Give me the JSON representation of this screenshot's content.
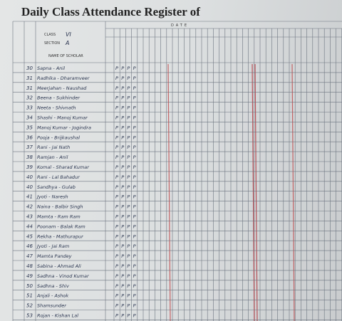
{
  "header": {
    "title": "Daily Class Attendance Register of",
    "class_label": "CLASS",
    "class_value": "VI",
    "section_label": "SECTION",
    "section_value": "A",
    "name_label": "NAME OF SCHOLAR",
    "date_label": "DATE"
  },
  "table": {
    "rows": [
      {
        "roll": "30",
        "name": "Sapna - Anil",
        "marks": [
          "P",
          "P",
          "P",
          "P"
        ]
      },
      {
        "roll": "31",
        "name": "Radhika - Dharamveer",
        "marks": [
          "P",
          "P",
          "P",
          "P"
        ]
      },
      {
        "roll": "31",
        "name": "Meerjahan - Naushad",
        "marks": [
          "P",
          "P",
          "P",
          "P"
        ]
      },
      {
        "roll": "32",
        "name": "Beena - Sukhinder",
        "marks": [
          "P",
          "P",
          "P",
          "P"
        ]
      },
      {
        "roll": "33",
        "name": "Neeta - Shivnath",
        "marks": [
          "P",
          "P",
          "P",
          "P"
        ]
      },
      {
        "roll": "34",
        "name": "Shashi - Manoj Kumar",
        "marks": [
          "P",
          "P",
          "P",
          "P"
        ]
      },
      {
        "roll": "35",
        "name": "Manoj Kumar - Jogindra",
        "marks": [
          "P",
          "P",
          "P",
          "P"
        ]
      },
      {
        "roll": "36",
        "name": "Pooja - Brijkaushal",
        "marks": [
          "P",
          "P",
          "P",
          "P"
        ]
      },
      {
        "roll": "37",
        "name": "Rani - Jai Nath",
        "marks": [
          "P",
          "P",
          "P",
          "P"
        ]
      },
      {
        "roll": "38",
        "name": "Ramjan - Anil",
        "marks": [
          "P",
          "P",
          "P",
          "P"
        ]
      },
      {
        "roll": "39",
        "name": "Komal - Sharad Kumar",
        "marks": [
          "P",
          "P",
          "P",
          "P"
        ]
      },
      {
        "roll": "40",
        "name": "Rani - Lal Bahadur",
        "marks": [
          "P",
          "P",
          "P",
          "P"
        ]
      },
      {
        "roll": "40",
        "name": "Sandhya - Gulab",
        "marks": [
          "P",
          "P",
          "P",
          "P"
        ]
      },
      {
        "roll": "41",
        "name": "Jyoti - Naresh",
        "marks": [
          "P",
          "P",
          "P",
          "P"
        ]
      },
      {
        "roll": "42",
        "name": "Naina - Balbir Singh",
        "marks": [
          "P",
          "P",
          "P",
          "P"
        ]
      },
      {
        "roll": "43",
        "name": "Mamta - Ram Ram",
        "marks": [
          "P",
          "P",
          "P",
          "P"
        ]
      },
      {
        "roll": "44",
        "name": "Poonam - Balak Ram",
        "marks": [
          "P",
          "P",
          "P",
          "P"
        ]
      },
      {
        "roll": "45",
        "name": "Rekha - Mathurapur",
        "marks": [
          "P",
          "P",
          "P",
          "P"
        ]
      },
      {
        "roll": "46",
        "name": "Jyoti - Jai Ram",
        "marks": [
          "P",
          "P",
          "P",
          "P"
        ]
      },
      {
        "roll": "47",
        "name": "Mamta Pandey",
        "marks": [
          "P",
          "P",
          "P",
          "P"
        ]
      },
      {
        "roll": "48",
        "name": "Sabina - Ahmad Ali",
        "marks": [
          "P",
          "P",
          "P",
          "P"
        ]
      },
      {
        "roll": "49",
        "name": "Sadhna - Vinod Kumar",
        "marks": [
          "P",
          "P",
          "P",
          "P"
        ]
      },
      {
        "roll": "50",
        "name": "Sadhna - Shiv",
        "marks": [
          "P",
          "P",
          "P",
          "P"
        ]
      },
      {
        "roll": "51",
        "name": "Anjali - Ashok",
        "marks": [
          "P",
          "P",
          "P",
          "P"
        ]
      },
      {
        "roll": "52",
        "name": "Shamsunder",
        "marks": [
          "P",
          "P",
          "P",
          "P"
        ]
      },
      {
        "roll": "53",
        "name": "Rojan - Kishan Lal",
        "marks": [
          "P",
          "P",
          "P",
          "P"
        ]
      }
    ]
  }
}
